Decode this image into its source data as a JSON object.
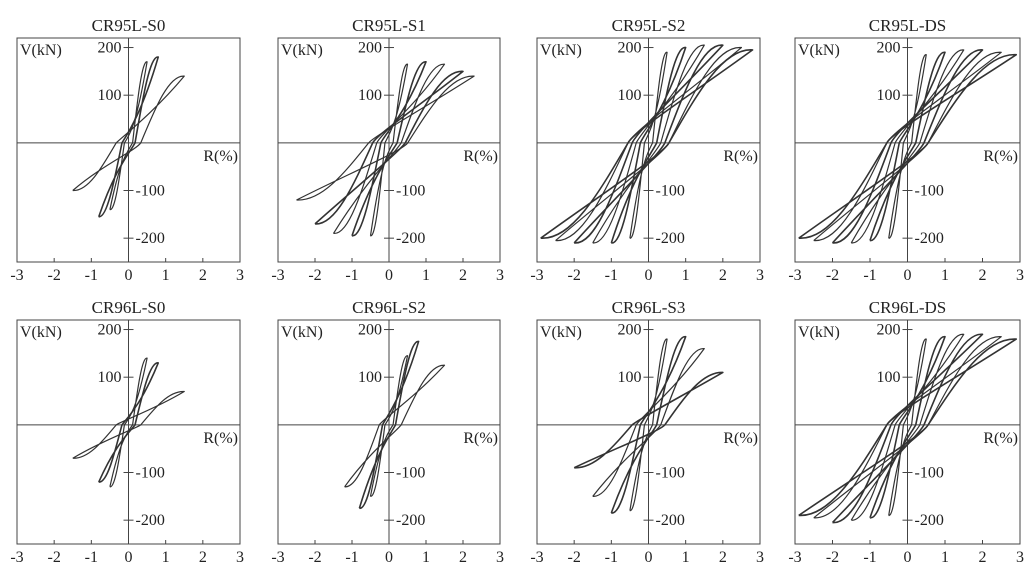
{
  "chart_data": [
    {
      "type": "line",
      "title": "CR95L-S0",
      "ylabel": "V(kN)",
      "xlabel": "R(%)",
      "xlim": [
        -3,
        3
      ],
      "ylim": [
        -250,
        220
      ],
      "xticks": [
        "-3",
        "-2",
        "-1",
        "0",
        "1",
        "2",
        "3"
      ],
      "yticks": [
        "200",
        "100",
        "-100",
        "-200"
      ],
      "series": [
        {
          "peaks_pos": [
            [
              0.5,
              170
            ],
            [
              0.8,
              180
            ],
            [
              1.5,
              140
            ]
          ],
          "peaks_neg": [
            [
              -0.5,
              -140
            ],
            [
              -0.8,
              -155
            ],
            [
              -1.5,
              -100
            ]
          ]
        }
      ]
    },
    {
      "type": "line",
      "title": "CR95L-S1",
      "ylabel": "V(kN)",
      "xlabel": "R(%)",
      "xlim": [
        -3,
        3
      ],
      "ylim": [
        -250,
        220
      ],
      "xticks": [
        "-3",
        "-2",
        "-1",
        "0",
        "1",
        "2",
        "3"
      ],
      "yticks": [
        "200",
        "100",
        "-100",
        "-200"
      ],
      "series": [
        {
          "peaks_pos": [
            [
              0.5,
              165
            ],
            [
              1,
              170
            ],
            [
              1.5,
              165
            ],
            [
              2,
              150
            ],
            [
              2.3,
              140
            ]
          ],
          "peaks_neg": [
            [
              -0.5,
              -195
            ],
            [
              -1,
              -195
            ],
            [
              -1.5,
              -190
            ],
            [
              -2,
              -170
            ],
            [
              -2.5,
              -120
            ]
          ]
        }
      ]
    },
    {
      "type": "line",
      "title": "CR95L-S2",
      "ylabel": "V(kN)",
      "xlabel": "R(%)",
      "xlim": [
        -3,
        3
      ],
      "ylim": [
        -250,
        220
      ],
      "xticks": [
        "-3",
        "-2",
        "-1",
        "0",
        "1",
        "2",
        "3"
      ],
      "yticks": [
        "200",
        "100",
        "-100",
        "-200"
      ],
      "series": [
        {
          "peaks_pos": [
            [
              0.5,
              190
            ],
            [
              1,
              200
            ],
            [
              1.5,
              205
            ],
            [
              2,
              205
            ],
            [
              2.5,
              200
            ],
            [
              2.8,
              195
            ]
          ],
          "peaks_neg": [
            [
              -0.5,
              -200
            ],
            [
              -1,
              -210
            ],
            [
              -1.5,
              -210
            ],
            [
              -2,
              -210
            ],
            [
              -2.5,
              -205
            ],
            [
              -2.9,
              -200
            ]
          ]
        }
      ]
    },
    {
      "type": "line",
      "title": "CR95L-DS",
      "ylabel": "V(kN)",
      "xlabel": "R(%)",
      "xlim": [
        -3,
        3
      ],
      "ylim": [
        -250,
        220
      ],
      "xticks": [
        "-3",
        "-2",
        "-1",
        "0",
        "1",
        "2",
        "3"
      ],
      "yticks": [
        "200",
        "100",
        "-100",
        "-200"
      ],
      "series": [
        {
          "peaks_pos": [
            [
              0.5,
              185
            ],
            [
              1,
              190
            ],
            [
              1.5,
              195
            ],
            [
              2,
              195
            ],
            [
              2.5,
              190
            ],
            [
              2.9,
              185
            ]
          ],
          "peaks_neg": [
            [
              -0.5,
              -200
            ],
            [
              -1,
              -205
            ],
            [
              -1.5,
              -210
            ],
            [
              -2,
              -210
            ],
            [
              -2.5,
              -205
            ],
            [
              -2.9,
              -200
            ]
          ]
        }
      ]
    },
    {
      "type": "line",
      "title": "CR96L-S0",
      "ylabel": "V(kN)",
      "xlabel": "R(%)",
      "xlim": [
        -3,
        3
      ],
      "ylim": [
        -250,
        220
      ],
      "xticks": [
        "-3",
        "-2",
        "-1",
        "0",
        "1",
        "2",
        "3"
      ],
      "yticks": [
        "200",
        "100",
        "-100",
        "-200"
      ],
      "series": [
        {
          "peaks_pos": [
            [
              0.5,
              140
            ],
            [
              0.8,
              130
            ],
            [
              1.5,
              70
            ]
          ],
          "peaks_neg": [
            [
              -0.5,
              -130
            ],
            [
              -0.8,
              -120
            ],
            [
              -1.5,
              -70
            ]
          ]
        }
      ]
    },
    {
      "type": "line",
      "title": "CR96L-S2",
      "ylabel": "V(kN)",
      "xlabel": "R(%)",
      "xlim": [
        -3,
        3
      ],
      "ylim": [
        -250,
        220
      ],
      "xticks": [
        "-3",
        "-2",
        "-1",
        "0",
        "1",
        "2",
        "3"
      ],
      "yticks": [
        "200",
        "100",
        "-100",
        "-200"
      ],
      "series": [
        {
          "peaks_pos": [
            [
              0.5,
              145
            ],
            [
              0.8,
              175
            ],
            [
              1.5,
              125
            ]
          ],
          "peaks_neg": [
            [
              -0.5,
              -150
            ],
            [
              -0.8,
              -175
            ],
            [
              -1.2,
              -130
            ]
          ]
        }
      ]
    },
    {
      "type": "line",
      "title": "CR96L-S3",
      "ylabel": "V(kN)",
      "xlabel": "R(%)",
      "xlim": [
        -3,
        3
      ],
      "ylim": [
        -250,
        220
      ],
      "xticks": [
        "-3",
        "-2",
        "-1",
        "0",
        "1",
        "2",
        "3"
      ],
      "yticks": [
        "200",
        "100",
        "-100",
        "-200"
      ],
      "series": [
        {
          "peaks_pos": [
            [
              0.5,
              180
            ],
            [
              1,
              185
            ],
            [
              1.5,
              160
            ],
            [
              2,
              110
            ]
          ],
          "peaks_neg": [
            [
              -0.5,
              -180
            ],
            [
              -1,
              -185
            ],
            [
              -1.5,
              -150
            ],
            [
              -2,
              -90
            ]
          ]
        }
      ]
    },
    {
      "type": "line",
      "title": "CR96L-DS",
      "ylabel": "V(kN)",
      "xlabel": "R(%)",
      "xlim": [
        -3,
        3
      ],
      "ylim": [
        -250,
        220
      ],
      "xticks": [
        "-3",
        "-2",
        "-1",
        "0",
        "1",
        "2",
        "3"
      ],
      "yticks": [
        "200",
        "100",
        "-100",
        "-200"
      ],
      "series": [
        {
          "peaks_pos": [
            [
              0.5,
              180
            ],
            [
              1,
              185
            ],
            [
              1.5,
              190
            ],
            [
              2,
              190
            ],
            [
              2.5,
              185
            ],
            [
              2.9,
              180
            ]
          ],
          "peaks_neg": [
            [
              -0.5,
              -190
            ],
            [
              -1,
              -195
            ],
            [
              -1.5,
              -200
            ],
            [
              -2,
              -205
            ],
            [
              -2.5,
              -195
            ],
            [
              -2.9,
              -190
            ]
          ]
        }
      ]
    }
  ]
}
